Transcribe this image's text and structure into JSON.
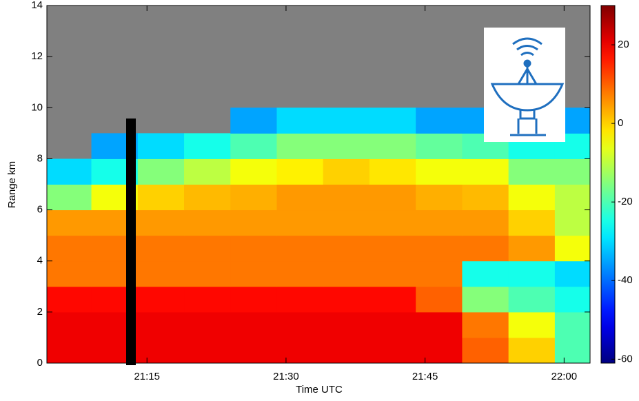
{
  "chart_data": {
    "type": "heatmap",
    "xlabel": "Time UTC",
    "ylabel": "Range km",
    "x_edges": [
      4.2,
      9,
      14,
      19,
      24,
      29,
      34,
      39,
      44,
      49,
      54,
      59,
      62.8
    ],
    "y_edges": [
      0,
      1,
      2,
      3,
      4,
      5,
      6,
      7,
      8,
      9,
      10,
      11,
      12,
      13,
      14
    ],
    "values": [
      [
        20,
        20,
        20,
        20,
        20,
        20,
        20,
        20,
        20,
        10,
        0,
        -20
      ],
      [
        20,
        20,
        20,
        20,
        20,
        20,
        20,
        20,
        20,
        8,
        -5,
        -20
      ],
      [
        18,
        18,
        18,
        18,
        18,
        18,
        18,
        18,
        10,
        -15,
        -20,
        -25
      ],
      [
        8,
        8,
        8,
        8,
        8,
        8,
        8,
        8,
        8,
        -25,
        -25,
        -30
      ],
      [
        8,
        8,
        8,
        8,
        8,
        8,
        8,
        8,
        8,
        8,
        5,
        -5
      ],
      [
        5,
        5,
        5,
        5,
        5,
        5,
        5,
        5,
        5,
        5,
        0,
        -10
      ],
      [
        -15,
        -5,
        0,
        2,
        3,
        5,
        5,
        5,
        3,
        2,
        -5,
        -10
      ],
      [
        -30,
        -25,
        -15,
        -10,
        -5,
        -3,
        0,
        -2,
        -5,
        -5,
        -15,
        -15
      ],
      [
        null,
        -35,
        -30,
        -25,
        -20,
        -15,
        -15,
        -15,
        -18,
        -20,
        -25,
        -25
      ],
      [
        null,
        null,
        null,
        null,
        -35,
        -30,
        -30,
        -30,
        -35,
        -35,
        -35,
        -35
      ],
      [
        null,
        null,
        null,
        null,
        null,
        null,
        null,
        null,
        null,
        null,
        null,
        null
      ],
      [
        null,
        null,
        null,
        null,
        null,
        null,
        null,
        null,
        null,
        null,
        null,
        null
      ],
      [
        null,
        null,
        null,
        null,
        null,
        null,
        null,
        null,
        null,
        null,
        null,
        null
      ],
      [
        null,
        null,
        null,
        null,
        null,
        null,
        null,
        null,
        null,
        null,
        null,
        null
      ]
    ],
    "xlim": [
      4.2,
      62.8
    ],
    "xticks": [
      {
        "value": 15,
        "label": "21:15"
      },
      {
        "value": 30,
        "label": "21:30"
      },
      {
        "value": 45,
        "label": "21:45"
      },
      {
        "value": 60,
        "label": "22:00"
      }
    ],
    "ylim": [
      0,
      14
    ],
    "yticks": [
      0,
      2,
      4,
      6,
      8,
      10,
      12,
      14
    ],
    "colormap": "jet",
    "clim": [
      -61,
      30
    ],
    "cticks": [
      20,
      0,
      -20,
      -40,
      -60
    ],
    "no_data_color": "#808080"
  }
}
